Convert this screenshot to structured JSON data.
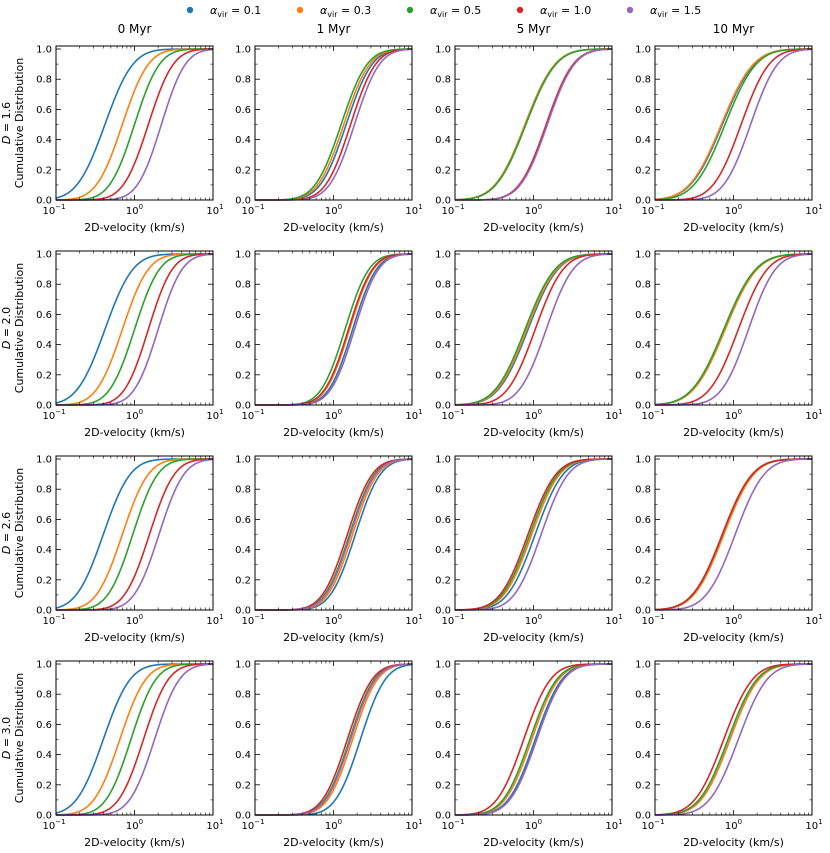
{
  "chart_data": {
    "type": "line",
    "layout": "4x4 grid of cumulative distribution plots",
    "legend": {
      "placement": "top",
      "entries": [
        {
          "key": "a01",
          "label_main": "α",
          "label_sub": "vir",
          "label_tail": " = 0.1",
          "color": "#1f77b4"
        },
        {
          "key": "a03",
          "label_main": "α",
          "label_sub": "vir",
          "label_tail": " = 0.3",
          "color": "#ff7f0e"
        },
        {
          "key": "a05",
          "label_main": "α",
          "label_sub": "vir",
          "label_tail": " = 0.5",
          "color": "#2ca02c"
        },
        {
          "key": "a10",
          "label_main": "α",
          "label_sub": "vir",
          "label_tail": " = 1.0",
          "color": "#d62728"
        },
        {
          "key": "a15",
          "label_main": "α",
          "label_sub": "vir",
          "label_tail": " = 1.5",
          "color": "#9467bd"
        }
      ]
    },
    "columns": [
      "0 Myr",
      "1 Myr",
      "5 Myr",
      "10 Myr"
    ],
    "rows": [
      {
        "label_italic": "D",
        "label_tail": " = 1.6",
        "ylabel": "Cumulative Distribution"
      },
      {
        "label_italic": "D",
        "label_tail": " = 2.0",
        "ylabel": "Cumulative Distribution"
      },
      {
        "label_italic": "D",
        "label_tail": " = 2.6",
        "ylabel": "Cumulative Distribution"
      },
      {
        "label_italic": "D",
        "label_tail": " = 3.0",
        "ylabel": "Cumulative Distribution"
      }
    ],
    "xlabel": "2D-velocity (km/s)",
    "xscale": "log",
    "xlim": [
      0.1,
      10
    ],
    "ylim": [
      0,
      1.02
    ],
    "xticks": [
      {
        "base": "10",
        "exp": "−1"
      },
      {
        "base": "10",
        "exp": "0"
      },
      {
        "base": "10",
        "exp": "1"
      }
    ],
    "yticks": [
      "0.0",
      "0.2",
      "0.4",
      "0.6",
      "0.8",
      "1.0"
    ],
    "series_note": "Each curve is a log-normal CDF; median velocity (km/s) and log10 spread per alpha_vir",
    "panels": [
      [
        {
          "medians": [
            0.42,
            0.7,
            1.0,
            1.5,
            2.2
          ],
          "spreads": [
            0.28,
            0.26,
            0.25,
            0.25,
            0.24
          ]
        },
        {
          "medians": [
            1.45,
            1.35,
            1.25,
            1.65,
            1.85
          ],
          "spreads": [
            0.26,
            0.26,
            0.26,
            0.25,
            0.25
          ]
        },
        {
          "medians": [
            0.78,
            0.78,
            0.8,
            1.45,
            1.5
          ],
          "spreads": [
            0.3,
            0.3,
            0.3,
            0.27,
            0.27
          ]
        },
        {
          "medians": [
            0.72,
            0.7,
            0.78,
            1.25,
            1.65
          ],
          "spreads": [
            0.32,
            0.32,
            0.31,
            0.28,
            0.27
          ]
        }
      ],
      [
        {
          "medians": [
            0.42,
            0.7,
            1.0,
            1.5,
            2.0
          ],
          "spreads": [
            0.28,
            0.26,
            0.25,
            0.24,
            0.24
          ]
        },
        {
          "medians": [
            1.75,
            1.6,
            1.4,
            1.55,
            1.85
          ],
          "spreads": [
            0.24,
            0.24,
            0.24,
            0.24,
            0.24
          ]
        },
        {
          "medians": [
            0.85,
            0.82,
            0.78,
            1.05,
            1.45
          ],
          "spreads": [
            0.3,
            0.3,
            0.3,
            0.28,
            0.27
          ]
        },
        {
          "medians": [
            0.78,
            0.78,
            0.75,
            1.15,
            1.55
          ],
          "spreads": [
            0.32,
            0.32,
            0.32,
            0.29,
            0.27
          ]
        }
      ],
      [
        {
          "medians": [
            0.4,
            0.7,
            0.95,
            1.55,
            2.05
          ],
          "spreads": [
            0.27,
            0.26,
            0.25,
            0.25,
            0.25
          ]
        },
        {
          "medians": [
            1.9,
            1.75,
            1.6,
            1.5,
            1.65
          ],
          "spreads": [
            0.25,
            0.25,
            0.25,
            0.25,
            0.25
          ]
        },
        {
          "medians": [
            1.05,
            0.95,
            0.9,
            0.85,
            1.25
          ],
          "spreads": [
            0.28,
            0.28,
            0.28,
            0.28,
            0.27
          ]
        },
        {
          "medians": [
            0.75,
            0.75,
            0.72,
            0.72,
            1.05
          ],
          "spreads": [
            0.3,
            0.3,
            0.3,
            0.3,
            0.29
          ]
        }
      ],
      [
        {
          "medians": [
            0.4,
            0.65,
            0.9,
            1.3,
            1.8
          ],
          "spreads": [
            0.27,
            0.26,
            0.25,
            0.25,
            0.25
          ]
        },
        {
          "medians": [
            2.2,
            1.75,
            1.6,
            1.5,
            1.65
          ],
          "spreads": [
            0.25,
            0.25,
            0.25,
            0.25,
            0.25
          ]
        },
        {
          "medians": [
            1.05,
            0.95,
            0.9,
            0.75,
            1.1
          ],
          "spreads": [
            0.27,
            0.27,
            0.27,
            0.27,
            0.27
          ]
        },
        {
          "medians": [
            0.9,
            0.9,
            0.85,
            0.75,
            1.15
          ],
          "spreads": [
            0.29,
            0.29,
            0.29,
            0.29,
            0.29
          ]
        }
      ]
    ]
  }
}
